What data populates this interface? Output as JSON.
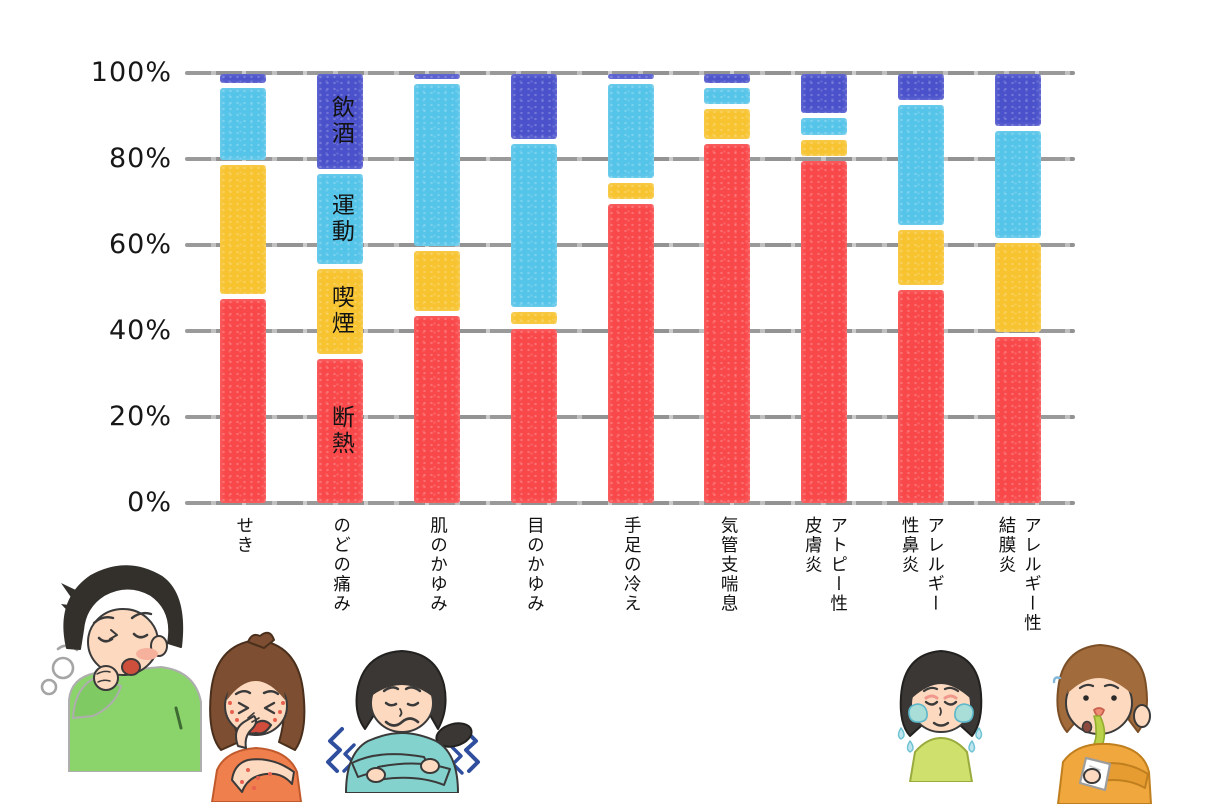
{
  "page": {
    "background": "#ffffff"
  },
  "chart_data": {
    "type": "bar",
    "variant": "stacked-100-percent",
    "title": "",
    "xlabel": "",
    "ylabel": "",
    "categories": [
      "せき",
      "のどの痛み",
      "肌のかゆみ",
      "目のかゆみ",
      "手足の冷え",
      "気管支喘息",
      "アトピー性\n皮膚炎",
      "アレルギー\n性鼻炎",
      "アレルギー性\n結膜炎"
    ],
    "series": [
      {
        "name": "断熱",
        "color": "#f9484a",
        "values": [
          48,
          34,
          44,
          41,
          70,
          84,
          80,
          50,
          39
        ]
      },
      {
        "name": "喫煙",
        "color": "#f7c32f",
        "values": [
          31,
          21,
          15,
          4,
          5,
          8,
          5,
          14,
          22
        ]
      },
      {
        "name": "運動",
        "color": "#55c4e9",
        "values": [
          18,
          22,
          39,
          39,
          23,
          5,
          5,
          29,
          26
        ]
      },
      {
        "name": "飲酒",
        "color": "#4a51cb",
        "values": [
          3,
          23,
          2,
          16,
          2,
          3,
          10,
          7,
          13
        ]
      }
    ],
    "series_labels_shown_on_category_index": 1,
    "y_axis": {
      "ticks": [
        "100%",
        "80%",
        "60%",
        "40%",
        "20%",
        "0%"
      ],
      "min": 0,
      "max": 100,
      "grid": true,
      "grid_color": "#9b9b9b"
    },
    "legend_position": "labels-inside-second-bar"
  },
  "illustrations": [
    {
      "name": "coughing-man",
      "desc": "man coughing into his fist"
    },
    {
      "name": "itchy-skin-girl",
      "desc": "girl with rash scratching"
    },
    {
      "name": "shivering-woman",
      "desc": "cold woman hugging herself, shivering"
    },
    {
      "name": "crying-allergy-girl",
      "desc": "girl with watery eyes and tears"
    },
    {
      "name": "runny-nose-boy",
      "desc": "boy with runny nose holding a tissue"
    }
  ]
}
